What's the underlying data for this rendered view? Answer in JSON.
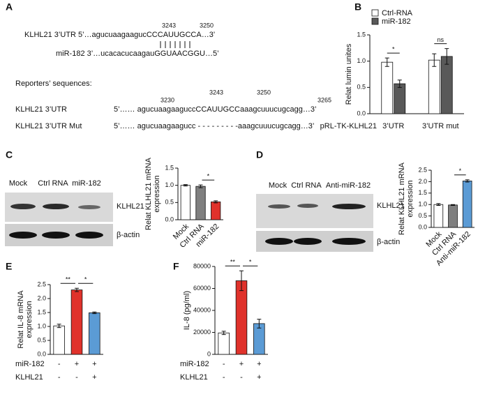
{
  "panel_labels": [
    "A",
    "B",
    "C",
    "D",
    "E",
    "F"
  ],
  "sequence_panel": {
    "target_label": "KLHL21 3’UTR",
    "target_seq": "5’…agucuaagaagucCCCAUUGCCA…3’",
    "target_positions": [
      "3243",
      "3250"
    ],
    "mirna_seq": "miR-182 3’…ucacacucaagauGGUAACGGU…5’",
    "reporters_title": "Reporters’ sequences:",
    "reporter_positions": [
      "3230",
      "3243",
      "3250",
      "3265"
    ],
    "reporters": [
      {
        "label": "KLHL21 3’UTR",
        "seq": "5’…… agucuaagaaguccCCAUUGCCaaagcuuucugcagg…3’"
      },
      {
        "label": "KLHL21 3’UTR Mut",
        "seq": "5’…… agucuaagaagucc - - - - - - - - -aaagcuuucugcagg…3’"
      }
    ]
  },
  "blots": [
    {
      "lanes": [
        "Mock",
        "Ctrl RNA",
        "miR-182"
      ],
      "bands": [
        "KLHL21",
        "β-actin"
      ]
    },
    {
      "lanes": [
        "Mock",
        "Ctrl RNA",
        "Anti-miR-182"
      ],
      "bands": [
        "KLHL21",
        "β-actin"
      ]
    }
  ],
  "chart_data": [
    {
      "type": "grouped_bar",
      "ylabel": [
        "Relat lumin unites"
      ],
      "xlabel": "pRL-TK-KLHL21",
      "categories": [
        "3’UTR",
        "3’UTR mut"
      ],
      "series": [
        {
          "name": "Ctrl-RNA",
          "color": "#ffffff",
          "values": [
            0.98,
            1.02
          ],
          "errors": [
            0.08,
            0.12
          ]
        },
        {
          "name": "miR-182",
          "color": "#595959",
          "values": [
            0.57,
            1.09
          ],
          "errors": [
            0.07,
            0.15
          ]
        }
      ],
      "ylim": [
        0,
        1.5
      ],
      "yticks": [
        {
          "value": 0,
          "label": "0.0"
        },
        0.5,
        {
          "value": 1,
          "label": "1.0"
        },
        1.5
      ],
      "annotations": [
        "*",
        "ns"
      ]
    },
    {
      "type": "bar",
      "ylabel": [
        "Relat KLHL21 mRNA",
        "expression"
      ],
      "categories": [
        "Mock",
        "Ctrl RNA",
        "miR-182"
      ],
      "values": [
        1.0,
        0.97,
        0.52
      ],
      "errors": [
        0.02,
        0.04,
        0.03
      ],
      "colors": [
        "#ffffff",
        "#7f7f7f",
        "#e0322b"
      ],
      "ylim": [
        0,
        1.5
      ],
      "yticks": [
        {
          "value": 0,
          "label": "0.0"
        },
        0.5,
        {
          "value": 1,
          "label": "1.0"
        },
        1.5
      ],
      "annotations": [
        "*"
      ]
    },
    {
      "type": "bar",
      "ylabel": [
        "Relat KLHL21 mRNA",
        "expression"
      ],
      "categories": [
        "Mock",
        "Ctrl RNA",
        "Anti-miR-182"
      ],
      "values": [
        1.0,
        0.98,
        2.03
      ],
      "errors": [
        0.04,
        0.02,
        0.05
      ],
      "colors": [
        "#ffffff",
        "#7f7f7f",
        "#5b9bd5"
      ],
      "ylim": [
        0,
        2.5
      ],
      "yticks": [
        {
          "value": 0,
          "label": "0.0"
        },
        0.5,
        {
          "value": 1,
          "label": "1.0"
        },
        1.5,
        {
          "value": 2,
          "label": "2.0"
        },
        2.5
      ],
      "annotations": [
        "*"
      ]
    },
    {
      "type": "bar",
      "ylabel": [
        "Relat IL-8 mRNA",
        "expression"
      ],
      "values": [
        1.02,
        2.31,
        1.49
      ],
      "errors": [
        0.06,
        0.06,
        0.03
      ],
      "colors": [
        "#ffffff",
        "#e0322b",
        "#5b9bd5"
      ],
      "conditions": [
        {
          "name": "miR-182",
          "values": [
            "-",
            "+",
            "+"
          ]
        },
        {
          "name": "KLHL21",
          "values": [
            "-",
            "-",
            "+"
          ]
        }
      ],
      "ylim": [
        0,
        2.5
      ],
      "yticks": [
        {
          "value": 0,
          "label": "0.0"
        },
        0.5,
        {
          "value": 1,
          "label": "1.0"
        },
        1.5,
        {
          "value": 2,
          "label": "2.0"
        },
        2.5
      ],
      "annotations": [
        "**",
        "*"
      ]
    },
    {
      "type": "bar",
      "ylabel": [
        "IL-8 (pg/ml)"
      ],
      "values": [
        19500,
        67000,
        28000
      ],
      "errors": [
        1500,
        9000,
        4000
      ],
      "colors": [
        "#ffffff",
        "#e0322b",
        "#5b9bd5"
      ],
      "conditions": [
        {
          "name": "miR-182",
          "values": [
            "-",
            "+",
            "+"
          ]
        },
        {
          "name": "KLHL21",
          "values": [
            "-",
            "-",
            "+"
          ]
        }
      ],
      "ylim": [
        0,
        80000
      ],
      "yticks": [
        0,
        20000,
        40000,
        60000,
        80000
      ],
      "annotations": [
        "**",
        "*"
      ]
    }
  ]
}
